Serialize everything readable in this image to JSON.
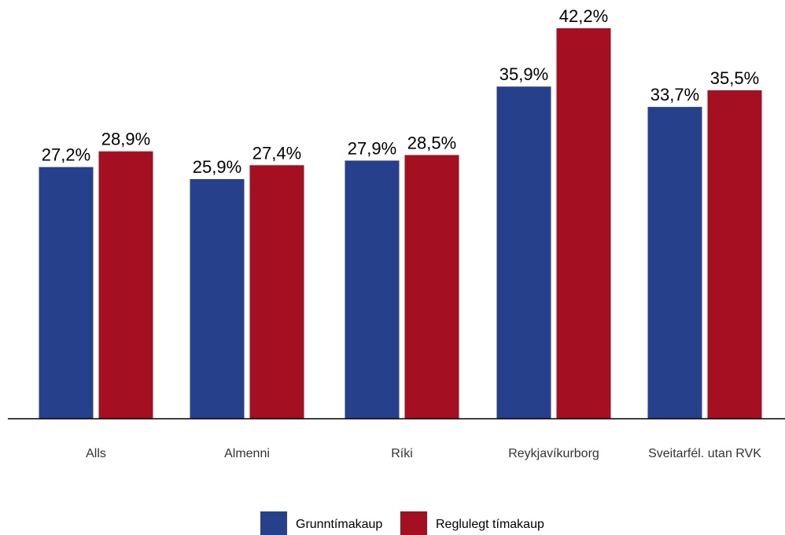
{
  "chart_data": {
    "type": "bar",
    "categories": [
      "Alls",
      "Almenni",
      "Ríki",
      "Reykjavíkurborg",
      "Sveitarfél. utan RVK"
    ],
    "series": [
      {
        "name": "Grunntímakaup",
        "color": "#27408b",
        "values": [
          27.2,
          25.9,
          27.9,
          35.9,
          33.7
        ],
        "labels": [
          "27,2%",
          "25,9%",
          "27,9%",
          "35,9%",
          "33,7%"
        ]
      },
      {
        "name": "Reglulegt tímakaup",
        "color": "#a50f22",
        "values": [
          28.9,
          27.4,
          28.5,
          42.2,
          35.5
        ],
        "labels": [
          "28,9%",
          "27,4%",
          "28,5%",
          "42,2%",
          "35,5%"
        ]
      }
    ],
    "ylim": [
      0,
      42.2
    ],
    "grid": false,
    "legend_position": "bottom",
    "title": "",
    "xlabel": "",
    "ylabel": ""
  }
}
